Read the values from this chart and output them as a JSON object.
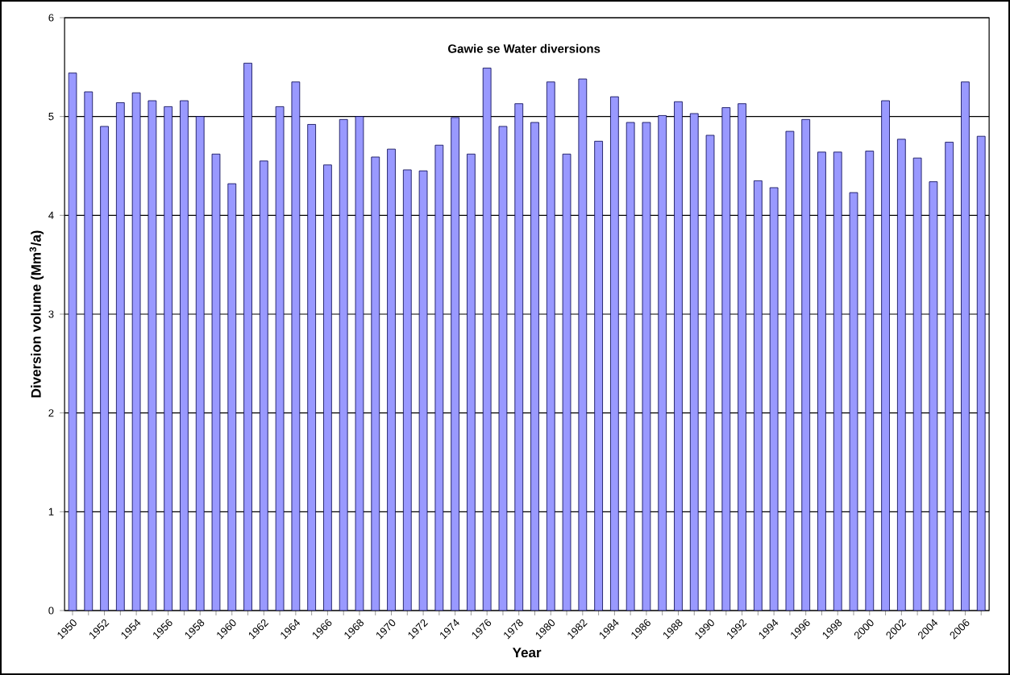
{
  "chart_data": {
    "type": "bar",
    "title": "Gawie se Water diversions",
    "xlabel": "Year",
    "ylabel": "Diversion volume (Mm$^{3}$/a)",
    "categories": [
      "1950",
      null,
      "1952",
      null,
      "1954",
      null,
      "1956",
      null,
      "1958",
      null,
      "1960",
      null,
      "1962",
      null,
      "1964",
      null,
      "1966",
      null,
      "1968",
      null,
      "1970",
      null,
      "1972",
      null,
      "1974",
      null,
      "1976",
      null,
      "1978",
      null,
      "1980",
      null,
      "1982",
      null,
      "1984",
      null,
      "1986",
      null,
      "1988",
      null,
      "1990",
      null,
      "1992",
      null,
      "1994",
      null,
      "1996",
      null,
      "1998",
      null,
      "2000",
      null,
      "2002",
      null,
      "2004",
      null,
      "2006",
      null
    ],
    "values": [
      5.44,
      5.25,
      4.9,
      5.14,
      5.24,
      5.16,
      5.1,
      5.16,
      5.0,
      4.62,
      4.32,
      5.54,
      4.55,
      5.1,
      5.35,
      4.92,
      4.51,
      4.97,
      5.0,
      4.59,
      4.67,
      4.46,
      4.45,
      4.71,
      4.99,
      4.62,
      5.49,
      4.9,
      5.13,
      4.94,
      5.35,
      4.62,
      5.38,
      4.75,
      5.2,
      4.94,
      4.94,
      5.01,
      5.15,
      5.03,
      4.81,
      5.09,
      5.13,
      4.35,
      4.28,
      4.85,
      4.97,
      4.64,
      4.64,
      4.23,
      4.65,
      5.16,
      4.77,
      4.58,
      4.34,
      4.74,
      5.35,
      4.8
    ],
    "color": "#9999ff",
    "ylim": [
      0,
      6
    ],
    "yticks": [
      0,
      1,
      2,
      3,
      4,
      5,
      6
    ],
    "grid": "y"
  }
}
